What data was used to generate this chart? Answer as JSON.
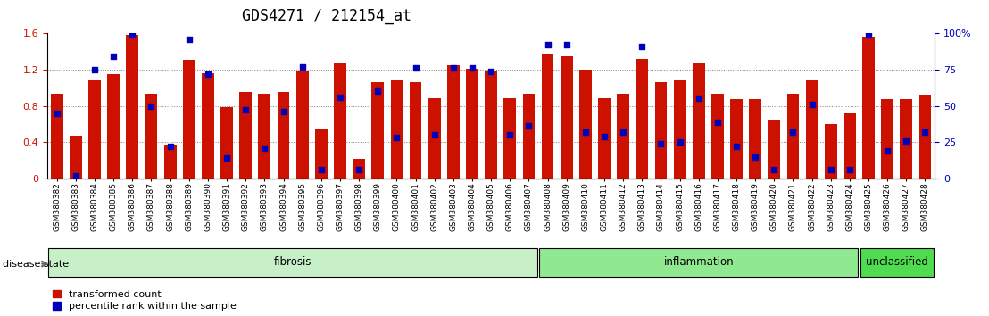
{
  "title": "GDS4271 / 212154_at",
  "samples": [
    "GSM380382",
    "GSM380383",
    "GSM380384",
    "GSM380385",
    "GSM380386",
    "GSM380387",
    "GSM380388",
    "GSM380389",
    "GSM380390",
    "GSM380391",
    "GSM380392",
    "GSM380393",
    "GSM380394",
    "GSM380395",
    "GSM380396",
    "GSM380397",
    "GSM380398",
    "GSM380399",
    "GSM380400",
    "GSM380401",
    "GSM380402",
    "GSM380403",
    "GSM380404",
    "GSM380405",
    "GSM380406",
    "GSM380407",
    "GSM380408",
    "GSM380409",
    "GSM380410",
    "GSM380411",
    "GSM380412",
    "GSM380413",
    "GSM380414",
    "GSM380415",
    "GSM380416",
    "GSM380417",
    "GSM380418",
    "GSM380419",
    "GSM380420",
    "GSM380421",
    "GSM380422",
    "GSM380423",
    "GSM380424",
    "GSM380425",
    "GSM380426",
    "GSM380427",
    "GSM380428"
  ],
  "bar_values": [
    0.93,
    0.47,
    1.08,
    1.15,
    1.58,
    0.93,
    0.37,
    1.31,
    1.16,
    0.79,
    0.95,
    0.93,
    0.95,
    1.18,
    0.55,
    1.27,
    0.22,
    1.06,
    1.08,
    1.06,
    0.88,
    1.25,
    1.21,
    1.18,
    0.88,
    0.93,
    1.37,
    1.35,
    1.2,
    0.88,
    0.93,
    1.32,
    1.06,
    1.08,
    1.27,
    0.93,
    0.87,
    0.87,
    0.65,
    0.93,
    1.08,
    0.6,
    0.72,
    1.55,
    0.87,
    0.87,
    0.92
  ],
  "percentile_values_pct": [
    45,
    2,
    75,
    84,
    99,
    50,
    22,
    96,
    72,
    14,
    47,
    21,
    46,
    77,
    6,
    56,
    6,
    60,
    28,
    76,
    30,
    76,
    76,
    74,
    30,
    36,
    92,
    92,
    32,
    29,
    32,
    91,
    24,
    25,
    55,
    39,
    22,
    15,
    6,
    32,
    51,
    6,
    6,
    99,
    19,
    26,
    32
  ],
  "groups": [
    {
      "name": "fibrosis",
      "start": 0,
      "end": 26,
      "color": "#c8f0c8"
    },
    {
      "name": "inflammation",
      "start": 26,
      "end": 43,
      "color": "#90e890"
    },
    {
      "name": "unclassified",
      "start": 43,
      "end": 47,
      "color": "#50dc50"
    }
  ],
  "bar_color": "#cc1100",
  "percentile_color": "#0000bb",
  "ylim_left": [
    0,
    1.6
  ],
  "yticks_left": [
    0,
    0.4,
    0.8,
    1.2,
    1.6
  ],
  "ytick_labels_left": [
    "0",
    "0.4",
    "0.8",
    "1.2",
    "1.6"
  ],
  "ylim_right": [
    0,
    100
  ],
  "yticks_right": [
    0,
    25,
    50,
    75,
    100
  ],
  "ytick_labels_right": [
    "0",
    "25",
    "50",
    "75",
    "100%"
  ],
  "title_fontsize": 12,
  "tick_fontsize": 6.5,
  "group_fontsize": 8.5,
  "legend_fontsize": 8
}
